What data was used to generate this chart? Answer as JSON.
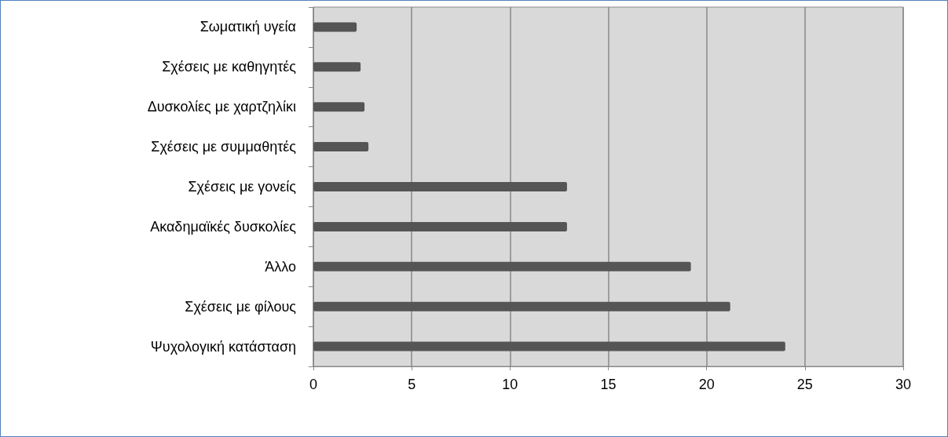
{
  "chart_data": {
    "type": "bar",
    "orientation": "horizontal",
    "categories": [
      "Σωματική υγεία",
      "Σχέσεις με καθηγητές",
      "Δυσκολίες με χαρτζηλίκι",
      "Σχέσεις με συμμαθητές",
      "Σχέσεις με γονείς",
      "Ακαδημαϊκές δυσκολίες",
      "Άλλο",
      "Σχέσεις με φίλους",
      "Ψυχολογική κατάσταση"
    ],
    "values": [
      2.2,
      2.4,
      2.6,
      2.8,
      12.9,
      12.9,
      19.2,
      21.2,
      24.0
    ],
    "color": "#555555",
    "xlim": [
      0,
      30
    ],
    "xticks": [
      0,
      5,
      10,
      15,
      20,
      25,
      30
    ],
    "grid": "x"
  }
}
